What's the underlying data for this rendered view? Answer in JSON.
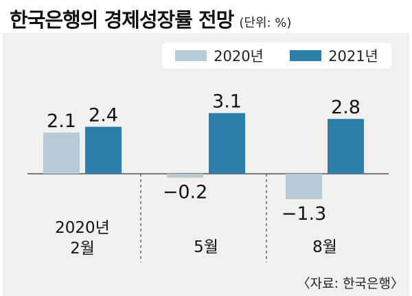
{
  "header": {
    "title": "한국은행의 경제성장률 전망",
    "unit": "(단위: %)"
  },
  "legend": {
    "items": [
      {
        "label": "2020년",
        "color": "#b7cbd7"
      },
      {
        "label": "2021년",
        "color": "#2b7fa8"
      }
    ]
  },
  "source": "〈자료: 한국은행〉",
  "chart_data": {
    "type": "bar",
    "categories": [
      [
        "2020년",
        "2월"
      ],
      [
        "5월"
      ],
      [
        "8월"
      ]
    ],
    "series": [
      {
        "name": "2020년",
        "values": [
          2.1,
          -0.2,
          -1.3
        ],
        "color": "#b7cbd7"
      },
      {
        "name": "2021년",
        "values": [
          2.4,
          3.1,
          2.8
        ],
        "color": "#2b7fa8"
      }
    ],
    "value_labels": [
      [
        "2.1",
        "−0.2",
        "−1.3"
      ],
      [
        "2.4",
        "3.1",
        "2.8"
      ]
    ],
    "ylim": [
      -1.6,
      3.8
    ],
    "grid": false,
    "legend_position": "top"
  }
}
